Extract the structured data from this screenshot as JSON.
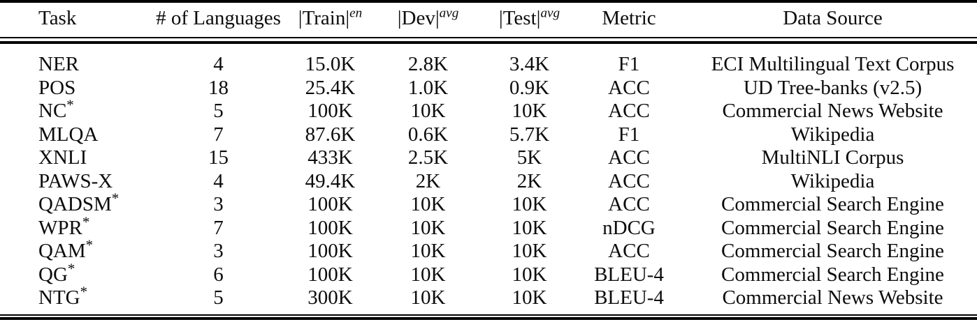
{
  "table": {
    "headers": {
      "task": "Task",
      "languages": "# of Languages",
      "train_base": "|Train|",
      "train_sup": "en",
      "dev_base": "|Dev|",
      "dev_sup": "avg",
      "test_base": "|Test|",
      "test_sup": "avg",
      "metric": "Metric",
      "source": "Data Source"
    },
    "rows": [
      {
        "task": "NER",
        "sup": "",
        "languages": "4",
        "train": "15.0K",
        "dev": "2.8K",
        "test": "3.4K",
        "metric": "F1",
        "source": "ECI Multilingual Text Corpus"
      },
      {
        "task": "POS",
        "sup": "",
        "languages": "18",
        "train": "25.4K",
        "dev": "1.0K",
        "test": "0.9K",
        "metric": "ACC",
        "source": "UD Tree-banks (v2.5)"
      },
      {
        "task": "NC",
        "sup": "*",
        "languages": "5",
        "train": "100K",
        "dev": "10K",
        "test": "10K",
        "metric": "ACC",
        "source": "Commercial News Website"
      },
      {
        "task": "MLQA",
        "sup": "",
        "languages": "7",
        "train": "87.6K",
        "dev": "0.6K",
        "test": "5.7K",
        "metric": "F1",
        "source": "Wikipedia"
      },
      {
        "task": "XNLI",
        "sup": "",
        "languages": "15",
        "train": "433K",
        "dev": "2.5K",
        "test": "5K",
        "metric": "ACC",
        "source": "MultiNLI Corpus"
      },
      {
        "task": "PAWS-X",
        "sup": "",
        "languages": "4",
        "train": "49.4K",
        "dev": "2K",
        "test": "2K",
        "metric": "ACC",
        "source": "Wikipedia"
      },
      {
        "task": "QADSM",
        "sup": "*",
        "languages": "3",
        "train": "100K",
        "dev": "10K",
        "test": "10K",
        "metric": "ACC",
        "source": "Commercial Search Engine"
      },
      {
        "task": "WPR",
        "sup": "*",
        "languages": "7",
        "train": "100K",
        "dev": "10K",
        "test": "10K",
        "metric": "nDCG",
        "source": "Commercial Search Engine"
      },
      {
        "task": "QAM",
        "sup": "*",
        "languages": "3",
        "train": "100K",
        "dev": "10K",
        "test": "10K",
        "metric": "ACC",
        "source": "Commercial Search Engine"
      },
      {
        "task": "QG",
        "sup": "*",
        "languages": "6",
        "train": "100K",
        "dev": "10K",
        "test": "10K",
        "metric": "BLEU-4",
        "source": "Commercial Search Engine"
      },
      {
        "task": "NTG",
        "sup": "*",
        "languages": "5",
        "train": "300K",
        "dev": "10K",
        "test": "10K",
        "metric": "BLEU-4",
        "source": "Commercial News Website"
      }
    ]
  },
  "colors": {
    "rule": "#000000",
    "text": "#0c0c0c",
    "background": "#ffffff"
  }
}
